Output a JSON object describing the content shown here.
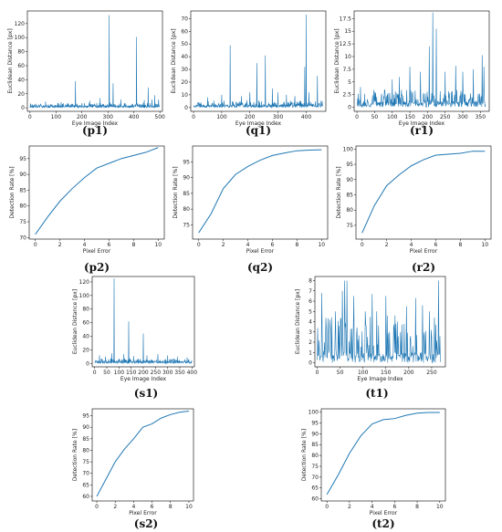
{
  "chart_data": [
    {
      "id": "p1",
      "caption": "(p1)",
      "type": "line",
      "xlabel": "Eye Image Index",
      "ylabel": "Euclidean Distance [px]",
      "xlim": [
        -10,
        510
      ],
      "ylim": [
        -5,
        138
      ],
      "xticks": [
        0,
        100,
        200,
        300,
        400,
        500
      ],
      "yticks": [
        0,
        20,
        40,
        60,
        80,
        100,
        120
      ],
      "series": [
        {
          "n": 500,
          "seed": 11,
          "base": 3,
          "noise": 5,
          "spikes": [
            [
              60,
              9
            ],
            [
              120,
              8
            ],
            [
              175,
              38
            ],
            [
              230,
              10
            ],
            [
              270,
              14
            ],
            [
              305,
              132
            ],
            [
              320,
              35
            ],
            [
              350,
              12
            ],
            [
              410,
              101
            ],
            [
              440,
              11
            ],
            [
              455,
              29
            ],
            [
              470,
              12
            ],
            [
              480,
              18
            ],
            [
              495,
              12
            ]
          ]
        }
      ]
    },
    {
      "id": "q1",
      "caption": "(q1)",
      "type": "line",
      "xlabel": "Eye Image Index",
      "ylabel": "Euclidean Distance [px]",
      "xlim": [
        -10,
        470
      ],
      "ylim": [
        -3,
        76
      ],
      "xticks": [
        0,
        100,
        200,
        300,
        400
      ],
      "yticks": [
        0,
        10,
        20,
        30,
        40,
        50,
        60,
        70
      ],
      "series": [
        {
          "n": 460,
          "seed": 23,
          "base": 2,
          "noise": 4,
          "spikes": [
            [
              50,
              8
            ],
            [
              100,
              10
            ],
            [
              130,
              49
            ],
            [
              170,
              9
            ],
            [
              200,
              12
            ],
            [
              225,
              35
            ],
            [
              255,
              41
            ],
            [
              280,
              15
            ],
            [
              300,
              12
            ],
            [
              330,
              10
            ],
            [
              360,
              9
            ],
            [
              395,
              32
            ],
            [
              400,
              73
            ],
            [
              410,
              12
            ],
            [
              440,
              25
            ]
          ]
        }
      ]
    },
    {
      "id": "r1",
      "caption": "(r1)",
      "type": "line",
      "xlabel": "Eye Image Index",
      "ylabel": "Euclidean Distance [px]",
      "xlim": [
        -8,
        375
      ],
      "ylim": [
        -0.8,
        19
      ],
      "xticks": [
        0,
        50,
        100,
        150,
        200,
        250,
        300,
        350
      ],
      "yticks": [
        0,
        2.5,
        5,
        7.5,
        10,
        12.5,
        15,
        17.5
      ],
      "series": [
        {
          "n": 365,
          "seed": 37,
          "base": 1.2,
          "noise": 2.6,
          "spikes": [
            [
              10,
              4
            ],
            [
              100,
              5.5
            ],
            [
              120,
              6
            ],
            [
              150,
              8
            ],
            [
              180,
              7
            ],
            [
              205,
              12
            ],
            [
              215,
              18.7
            ],
            [
              225,
              15.5
            ],
            [
              250,
              7
            ],
            [
              280,
              8.2
            ],
            [
              300,
              7
            ],
            [
              330,
              7.5
            ],
            [
              355,
              10.3
            ],
            [
              360,
              8
            ]
          ]
        }
      ]
    },
    {
      "id": "p2",
      "caption": "(p2)",
      "type": "line",
      "xlabel": "Pixel Error",
      "ylabel": "Detection Rate [%]",
      "xlim": [
        -0.5,
        10.5
      ],
      "ylim": [
        69.5,
        99
      ],
      "xticks": [
        0,
        2,
        4,
        6,
        8,
        10
      ],
      "yticks": [
        70,
        75,
        80,
        85,
        90,
        95
      ],
      "series": [
        {
          "x": [
            0,
            1,
            2,
            3,
            4,
            5,
            6,
            7,
            8,
            9,
            10
          ],
          "y": [
            71,
            76.5,
            81.5,
            85.5,
            89,
            92,
            93.5,
            95,
            96,
            97,
            98.5
          ]
        }
      ]
    },
    {
      "id": "q2",
      "caption": "(q2)",
      "type": "line",
      "xlabel": "Pixel Error",
      "ylabel": "Detection Rate [%]",
      "xlim": [
        -0.5,
        10.5
      ],
      "ylim": [
        70.5,
        100
      ],
      "xticks": [
        0,
        2,
        4,
        6,
        8,
        10
      ],
      "yticks": [
        75,
        80,
        85,
        90,
        95
      ],
      "series": [
        {
          "x": [
            0,
            1,
            2,
            3,
            4,
            5,
            6,
            7,
            8,
            9,
            10
          ],
          "y": [
            72.5,
            78.5,
            86.5,
            91,
            93.5,
            95.5,
            97,
            97.8,
            98.5,
            98.7,
            98.8
          ]
        }
      ]
    },
    {
      "id": "r2",
      "caption": "(r2)",
      "type": "line",
      "xlabel": "Pixel Error",
      "ylabel": "Detection Rate [%]",
      "xlim": [
        -0.5,
        10.5
      ],
      "ylim": [
        70.5,
        101
      ],
      "xticks": [
        0,
        2,
        4,
        6,
        8,
        10
      ],
      "yticks": [
        75,
        80,
        85,
        90,
        95,
        100
      ],
      "series": [
        {
          "x": [
            0,
            1,
            2,
            3,
            4,
            5,
            6,
            7,
            8,
            9,
            10
          ],
          "y": [
            72.5,
            81.5,
            88,
            91.5,
            94.5,
            96.5,
            98,
            98.3,
            98.6,
            99.3,
            99.3
          ]
        }
      ]
    },
    {
      "id": "s1",
      "caption": "(s1)",
      "type": "line",
      "xlabel": "Eye Image Index",
      "ylabel": "Euclidean Distance [px]",
      "xlim": [
        -10,
        410
      ],
      "ylim": [
        -5,
        128
      ],
      "xticks": [
        0,
        50,
        100,
        150,
        200,
        250,
        300,
        350,
        400
      ],
      "yticks": [
        0,
        20,
        40,
        60,
        80,
        100,
        120
      ],
      "series": [
        {
          "n": 400,
          "seed": 53,
          "base": 3,
          "noise": 5,
          "spikes": [
            [
              20,
              12
            ],
            [
              45,
              10
            ],
            [
              70,
              15
            ],
            [
              80,
              125
            ],
            [
              120,
              14
            ],
            [
              140,
              62
            ],
            [
              160,
              11
            ],
            [
              200,
              44
            ],
            [
              215,
              12
            ],
            [
              260,
              14
            ],
            [
              300,
              12
            ],
            [
              340,
              10
            ],
            [
              380,
              9
            ]
          ]
        }
      ]
    },
    {
      "id": "t1",
      "caption": "(t1)",
      "type": "line",
      "xlabel": "Eye Image Index",
      "ylabel": "Euclidean Distance [px]",
      "xlim": [
        -5,
        280
      ],
      "ylim": [
        -0.4,
        8.4
      ],
      "xticks": [
        0,
        50,
        100,
        150,
        200,
        250
      ],
      "yticks": [
        0,
        1,
        2,
        3,
        4,
        5,
        6,
        7,
        8
      ],
      "series": [
        {
          "n": 270,
          "seed": 71,
          "base": 1,
          "noise": 4.2,
          "spikes": [
            [
              10,
              6.8
            ],
            [
              20,
              3.2
            ],
            [
              40,
              5
            ],
            [
              55,
              7
            ],
            [
              60,
              8
            ],
            [
              65,
              8
            ],
            [
              80,
              6.5
            ],
            [
              105,
              5
            ],
            [
              120,
              6.7
            ],
            [
              130,
              5
            ],
            [
              150,
              6.5
            ],
            [
              175,
              4
            ],
            [
              195,
              5.5
            ],
            [
              215,
              6.3
            ],
            [
              230,
              5.6
            ],
            [
              245,
              5
            ],
            [
              265,
              8
            ]
          ]
        }
      ]
    },
    {
      "id": "s2",
      "caption": "(s2)",
      "type": "line",
      "xlabel": "Pixel Error",
      "ylabel": "Detection Rate [%]",
      "xlim": [
        -0.5,
        10.5
      ],
      "ylim": [
        58,
        98
      ],
      "xticks": [
        0,
        2,
        4,
        6,
        8,
        10
      ],
      "yticks": [
        60,
        65,
        70,
        75,
        80,
        85,
        90,
        95
      ],
      "series": [
        {
          "x": [
            0,
            1,
            2,
            3,
            4,
            5,
            6,
            7,
            8,
            9,
            10
          ],
          "y": [
            60,
            67.5,
            75,
            80.5,
            85,
            90,
            91.5,
            94,
            95.5,
            96.5,
            97
          ]
        }
      ]
    },
    {
      "id": "t2",
      "caption": "(t2)",
      "type": "line",
      "xlabel": "Pixel Error",
      "ylabel": "Detection Rate [%]",
      "xlim": [
        -0.5,
        10.5
      ],
      "ylim": [
        59,
        101.5
      ],
      "xticks": [
        0,
        2,
        4,
        6,
        8,
        10
      ],
      "yticks": [
        60,
        65,
        70,
        75,
        80,
        85,
        90,
        95,
        100
      ],
      "series": [
        {
          "x": [
            0,
            1,
            2,
            3,
            4,
            5,
            6,
            7,
            8,
            9,
            10
          ],
          "y": [
            62,
            71,
            81,
            89,
            94.5,
            96.5,
            97,
            98.5,
            99.5,
            99.8,
            99.8
          ]
        }
      ]
    }
  ],
  "colors": {
    "line": "#1f77b4",
    "axis": "#000000",
    "text": "#222222"
  }
}
